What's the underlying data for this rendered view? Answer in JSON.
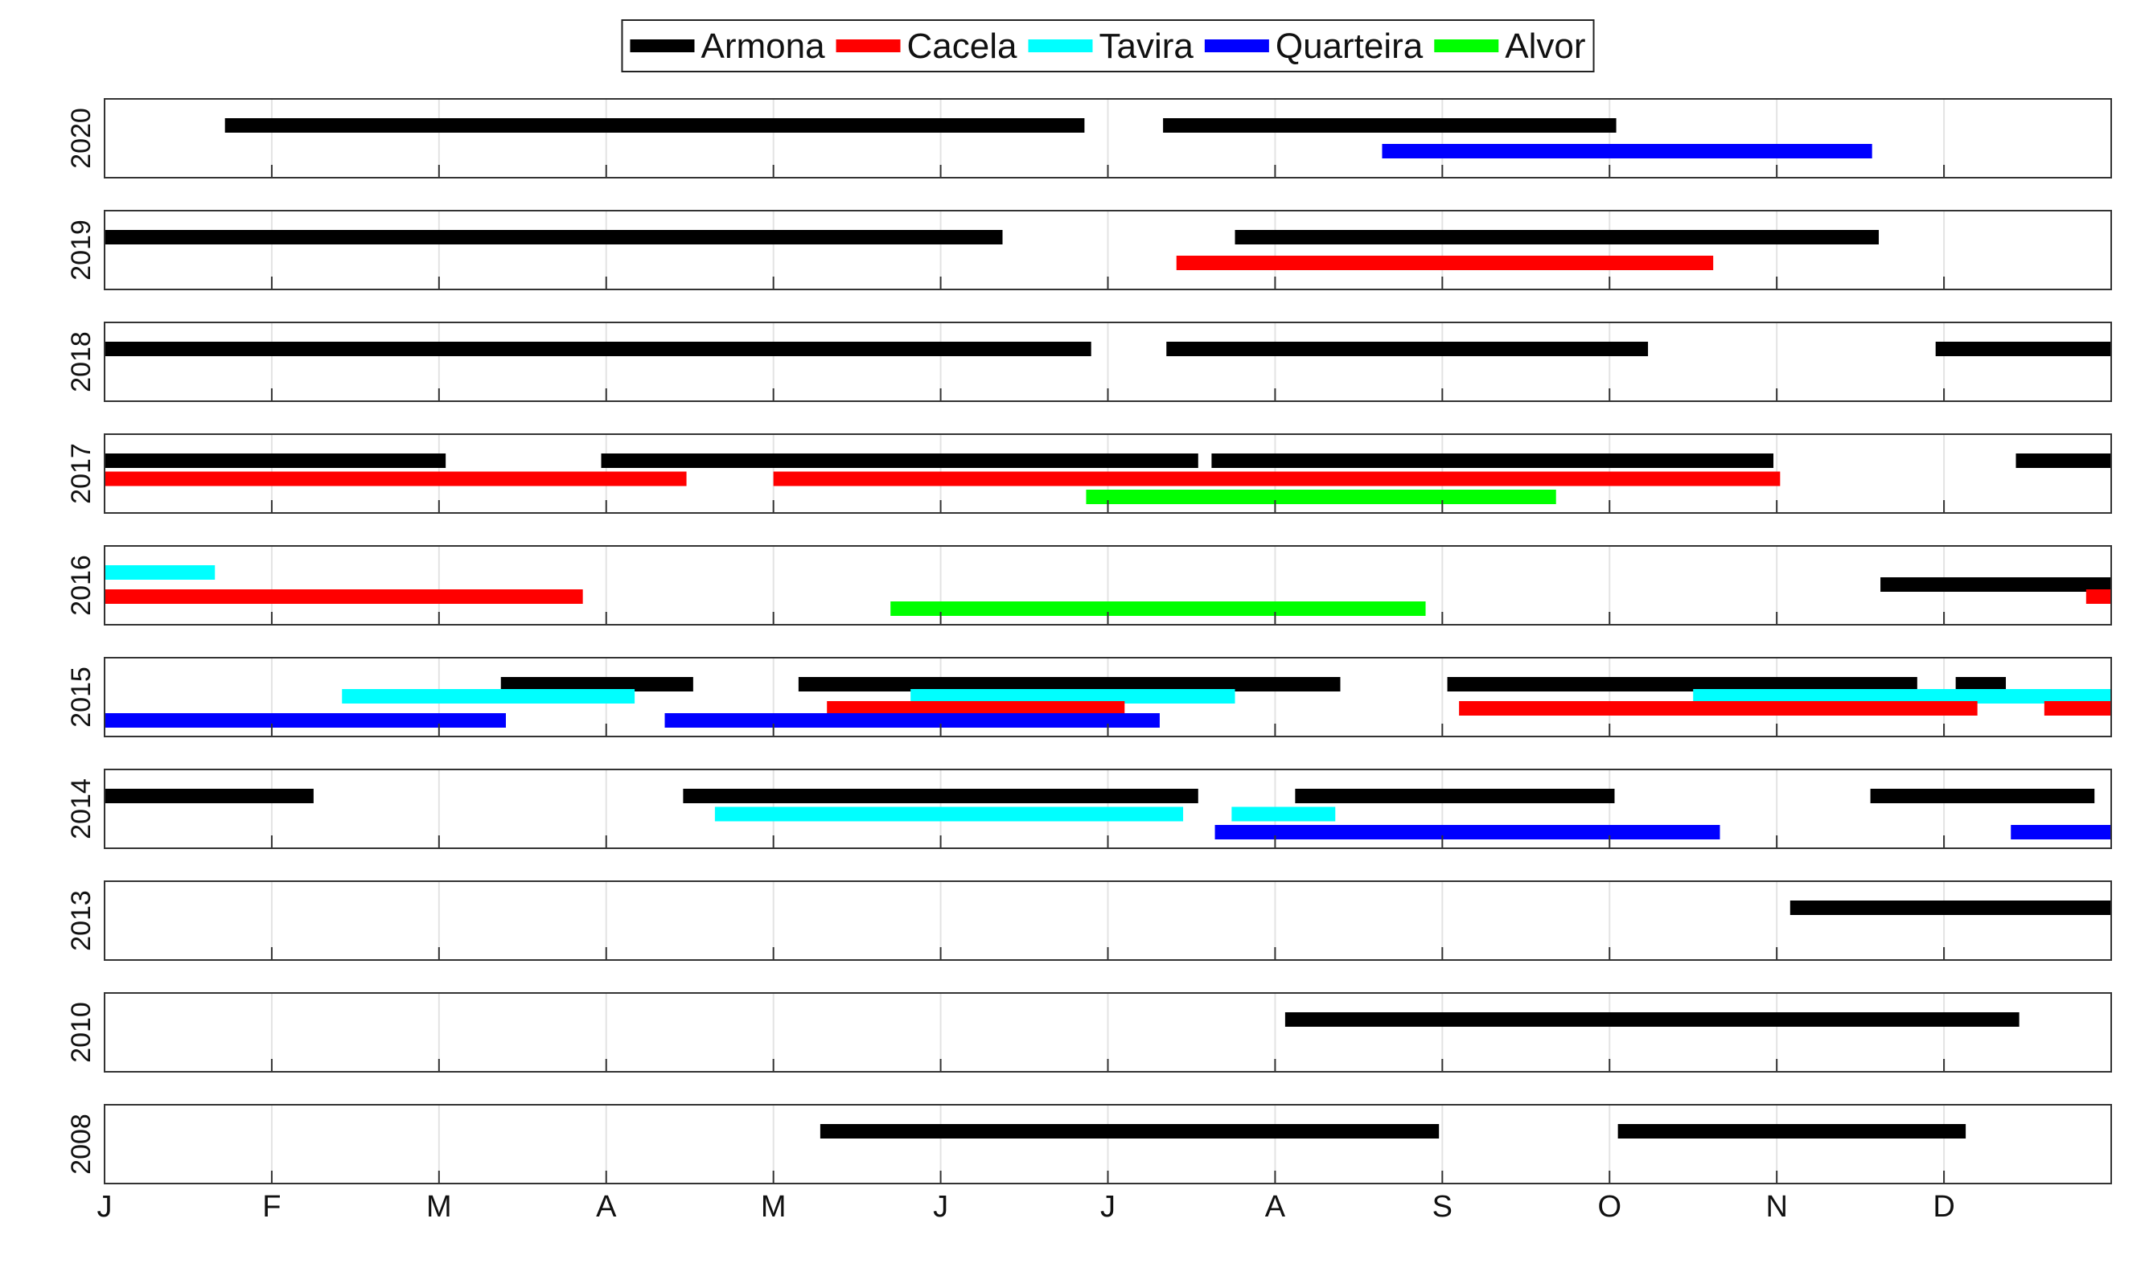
{
  "chart_data": {
    "type": "timeline",
    "x_axis": {
      "ticks": [
        "J",
        "F",
        "M",
        "A",
        "M",
        "J",
        "J",
        "A",
        "S",
        "O",
        "N",
        "D"
      ],
      "range_months": [
        1,
        13
      ]
    },
    "legend": {
      "placement": "top-center",
      "entries": [
        {
          "name": "Armona",
          "color": "#000000"
        },
        {
          "name": "Cacela",
          "color": "#ff0000"
        },
        {
          "name": "Tavira",
          "color": "#00ffff"
        },
        {
          "name": "Quarteira",
          "color": "#0000ff"
        },
        {
          "name": "Alvor",
          "color": "#00ff00"
        }
      ]
    },
    "panels": [
      {
        "year": "2020",
        "bars": [
          {
            "site": "Armona",
            "start": 1.72,
            "end": 6.86,
            "row": 0
          },
          {
            "site": "Armona",
            "start": 7.33,
            "end": 10.04,
            "row": 0
          },
          {
            "site": "Quarteira",
            "start": 8.64,
            "end": 11.57,
            "row": 1
          }
        ]
      },
      {
        "year": "2019",
        "bars": [
          {
            "site": "Armona",
            "start": 1.0,
            "end": 6.37,
            "row": 0
          },
          {
            "site": "Armona",
            "start": 7.76,
            "end": 11.61,
            "row": 0
          },
          {
            "site": "Cacela",
            "start": 7.41,
            "end": 10.62,
            "row": 1
          }
        ]
      },
      {
        "year": "2018",
        "bars": [
          {
            "site": "Armona",
            "start": 1.0,
            "end": 6.9,
            "row": 0
          },
          {
            "site": "Armona",
            "start": 7.35,
            "end": 10.23,
            "row": 0
          },
          {
            "site": "Armona",
            "start": 11.95,
            "end": 13.0,
            "row": 0
          }
        ]
      },
      {
        "year": "2017",
        "bars": [
          {
            "site": "Armona",
            "start": 1.0,
            "end": 3.04,
            "row": 0
          },
          {
            "site": "Armona",
            "start": 3.97,
            "end": 7.54,
            "row": 0
          },
          {
            "site": "Armona",
            "start": 7.62,
            "end": 10.98,
            "row": 0
          },
          {
            "site": "Armona",
            "start": 12.43,
            "end": 13.0,
            "row": 0
          },
          {
            "site": "Cacela",
            "start": 1.0,
            "end": 4.48,
            "row": 1
          },
          {
            "site": "Cacela",
            "start": 5.0,
            "end": 11.02,
            "row": 1
          },
          {
            "site": "Alvor",
            "start": 6.87,
            "end": 9.68,
            "row": 2
          }
        ]
      },
      {
        "year": "2016",
        "bars": [
          {
            "site": "Tavira",
            "start": 1.0,
            "end": 1.66,
            "row": 0
          },
          {
            "site": "Armona",
            "start": 11.62,
            "end": 13.0,
            "row": 1
          },
          {
            "site": "Cacela",
            "start": 1.0,
            "end": 3.86,
            "row": 2
          },
          {
            "site": "Cacela",
            "start": 12.85,
            "end": 13.0,
            "row": 2
          },
          {
            "site": "Alvor",
            "start": 5.7,
            "end": 8.9,
            "row": 3
          }
        ]
      },
      {
        "year": "2015",
        "bars": [
          {
            "site": "Armona",
            "start": 3.37,
            "end": 4.52,
            "row": 0
          },
          {
            "site": "Armona",
            "start": 5.15,
            "end": 8.39,
            "row": 0
          },
          {
            "site": "Armona",
            "start": 9.03,
            "end": 11.84,
            "row": 0
          },
          {
            "site": "Armona",
            "start": 12.07,
            "end": 12.37,
            "row": 0
          },
          {
            "site": "Tavira",
            "start": 2.42,
            "end": 4.17,
            "row": 1
          },
          {
            "site": "Tavira",
            "start": 5.82,
            "end": 7.76,
            "row": 1
          },
          {
            "site": "Tavira",
            "start": 10.5,
            "end": 13.0,
            "row": 1
          },
          {
            "site": "Cacela",
            "start": 5.32,
            "end": 7.1,
            "row": 2
          },
          {
            "site": "Cacela",
            "start": 9.1,
            "end": 12.2,
            "row": 2
          },
          {
            "site": "Cacela",
            "start": 12.6,
            "end": 13.0,
            "row": 2
          },
          {
            "site": "Quarteira",
            "start": 1.0,
            "end": 3.4,
            "row": 3
          },
          {
            "site": "Quarteira",
            "start": 4.35,
            "end": 7.31,
            "row": 3
          }
        ]
      },
      {
        "year": "2014",
        "bars": [
          {
            "site": "Armona",
            "start": 1.0,
            "end": 2.25,
            "row": 0
          },
          {
            "site": "Armona",
            "start": 4.46,
            "end": 7.54,
            "row": 0
          },
          {
            "site": "Armona",
            "start": 8.12,
            "end": 10.03,
            "row": 0
          },
          {
            "site": "Armona",
            "start": 11.56,
            "end": 12.9,
            "row": 0
          },
          {
            "site": "Tavira",
            "start": 4.65,
            "end": 7.45,
            "row": 1
          },
          {
            "site": "Tavira",
            "start": 7.74,
            "end": 8.36,
            "row": 1
          },
          {
            "site": "Quarteira",
            "start": 7.64,
            "end": 10.66,
            "row": 2
          },
          {
            "site": "Quarteira",
            "start": 12.4,
            "end": 13.0,
            "row": 2
          }
        ]
      },
      {
        "year": "2013",
        "bars": [
          {
            "site": "Armona",
            "start": 11.08,
            "end": 13.0,
            "row": 0
          }
        ]
      },
      {
        "year": "2010",
        "bars": [
          {
            "site": "Armona",
            "start": 8.06,
            "end": 12.45,
            "row": 0
          }
        ]
      },
      {
        "year": "2008",
        "bars": [
          {
            "site": "Armona",
            "start": 5.28,
            "end": 8.98,
            "row": 0
          },
          {
            "site": "Armona",
            "start": 10.05,
            "end": 12.13,
            "row": 0
          }
        ]
      }
    ]
  }
}
